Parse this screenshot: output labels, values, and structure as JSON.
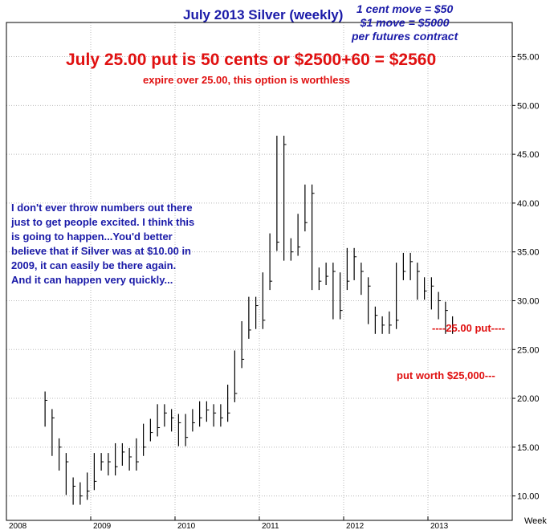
{
  "chart_data": {
    "type": "ohlc",
    "title": "July 2013 Silver (weekly)",
    "xlabel": "Week",
    "ylabel": "",
    "ylim": [
      7.5,
      58.5
    ],
    "yticks": [
      "10.00",
      "15.00",
      "20.00",
      "25.00",
      "30.00",
      "35.00",
      "40.00",
      "45.00",
      "50.00",
      "55.00"
    ],
    "xticks": [
      "2008",
      "2009",
      "2010",
      "2011",
      "2012",
      "2013"
    ],
    "grid": true,
    "unit_note": [
      "1 cent move = $50",
      "$1 move = $5000",
      "per futures contract"
    ],
    "headline": "July 25.00 put is 50 cents or $2500+60 = $2560",
    "subheadline": "expire over 25.00, this option is worthless",
    "quote": [
      "I don't ever throw numbers out there",
      "just to get people excited. I think this",
      "is going to happen...You'd better",
      "believe that if Silver was at $10.00 in",
      "2009, it can easily be there again.",
      "And it can happen very quickly..."
    ],
    "levels": [
      {
        "label": "----25.00 put----",
        "value": 25.0
      },
      {
        "label": "put worth $25,000---",
        "value": 20.0
      }
    ],
    "series": [
      {
        "x": "2008-06",
        "y": 19.8
      },
      {
        "x": "2008-07",
        "y": 18.0
      },
      {
        "x": "2008-08",
        "y": 15.0
      },
      {
        "x": "2008-09",
        "y": 13.5
      },
      {
        "x": "2008-10",
        "y": 11.0
      },
      {
        "x": "2008-11",
        "y": 10.0
      },
      {
        "x": "2008-12",
        "y": 10.5
      },
      {
        "x": "2009-01",
        "y": 11.5
      },
      {
        "x": "2009-02",
        "y": 13.5
      },
      {
        "x": "2009-03",
        "y": 13.5
      },
      {
        "x": "2009-04",
        "y": 13.0
      },
      {
        "x": "2009-05",
        "y": 14.5
      },
      {
        "x": "2009-06",
        "y": 14.0
      },
      {
        "x": "2009-07",
        "y": 13.5
      },
      {
        "x": "2009-08",
        "y": 15.0
      },
      {
        "x": "2009-09",
        "y": 16.5
      },
      {
        "x": "2009-10",
        "y": 17.0
      },
      {
        "x": "2009-11",
        "y": 18.5
      },
      {
        "x": "2009-12",
        "y": 18.0
      },
      {
        "x": "2010-01",
        "y": 17.5
      },
      {
        "x": "2010-02",
        "y": 16.0
      },
      {
        "x": "2010-03",
        "y": 17.5
      },
      {
        "x": "2010-04",
        "y": 18.0
      },
      {
        "x": "2010-05",
        "y": 18.8
      },
      {
        "x": "2010-06",
        "y": 18.5
      },
      {
        "x": "2010-07",
        "y": 18.0
      },
      {
        "x": "2010-08",
        "y": 18.5
      },
      {
        "x": "2010-09",
        "y": 20.5
      },
      {
        "x": "2010-10",
        "y": 24.0
      },
      {
        "x": "2010-11",
        "y": 27.0
      },
      {
        "x": "2010-12",
        "y": 29.5
      },
      {
        "x": "2011-01",
        "y": 28.0
      },
      {
        "x": "2011-02",
        "y": 32.0
      },
      {
        "x": "2011-03",
        "y": 36.0
      },
      {
        "x": "2011-04",
        "y": 46.0
      },
      {
        "x": "2011-05",
        "y": 35.0
      },
      {
        "x": "2011-06",
        "y": 35.5
      },
      {
        "x": "2011-07",
        "y": 38.0
      },
      {
        "x": "2011-08",
        "y": 41.0
      },
      {
        "x": "2011-09",
        "y": 32.0
      },
      {
        "x": "2011-10",
        "y": 32.5
      },
      {
        "x": "2011-11",
        "y": 33.0
      },
      {
        "x": "2011-12",
        "y": 29.0
      },
      {
        "x": "2012-01",
        "y": 32.0
      },
      {
        "x": "2012-02",
        "y": 34.5
      },
      {
        "x": "2012-03",
        "y": 33.0
      },
      {
        "x": "2012-04",
        "y": 31.5
      },
      {
        "x": "2012-05",
        "y": 28.5
      },
      {
        "x": "2012-06",
        "y": 27.5
      },
      {
        "x": "2012-07",
        "y": 27.5
      },
      {
        "x": "2012-08",
        "y": 28.0
      },
      {
        "x": "2012-09",
        "y": 33.0
      },
      {
        "x": "2012-10",
        "y": 34.0
      },
      {
        "x": "2012-11",
        "y": 33.0
      },
      {
        "x": "2012-12",
        "y": 31.0
      },
      {
        "x": "2013-01",
        "y": 31.5
      },
      {
        "x": "2013-02",
        "y": 30.0
      },
      {
        "x": "2013-03",
        "y": 29.0
      },
      {
        "x": "2013-04",
        "y": 27.5
      }
    ]
  },
  "colors": {
    "title": "#1a1aa8",
    "headline": "#e01010",
    "quote": "#1a1aa8",
    "level": "#e01010",
    "bars": "#000000",
    "grid": "#b8b8b8"
  }
}
